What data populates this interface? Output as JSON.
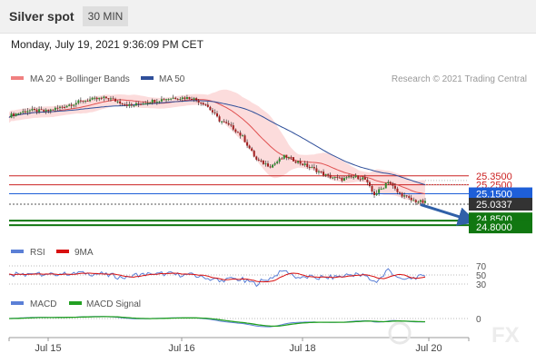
{
  "header": {
    "title": "Silver spot",
    "timeframe": "30 MIN",
    "timestamp": "Monday, July 19, 2021 9:36:09 PM CET"
  },
  "colors": {
    "ma20": "#e05050",
    "ma20_legend": "#f08080",
    "bollinger_fill": "#fbd0d0",
    "ma50": "#2f4f9a",
    "candle_up": "#2e8b2e",
    "candle_down": "#a02020",
    "level_resistance": "#cc2222",
    "level_pivot": "#1e5fd8",
    "level_support": "#117711",
    "current_price_bg": "#333333",
    "rsi": "#5b7fd6",
    "rsi_ma": "#d81010",
    "macd": "#5b7fd6",
    "macd_signal": "#22a022",
    "arrow": "#3060a8"
  },
  "chart_data": [
    {
      "type": "candlestick",
      "title": "Silver spot",
      "legend": [
        {
          "name": "MA 20 + Bollinger Bands",
          "color": "#f08080"
        },
        {
          "name": "MA 50",
          "color": "#2f4f9a"
        }
      ],
      "attribution": "Research © 2021 Trading Central",
      "x_ticks": [
        "Jul 15",
        "Jul 16",
        "Jul 18",
        "Jul 20"
      ],
      "y_range": [
        24.7,
        26.4
      ],
      "price_path": [
        [
          0,
          26.02
        ],
        [
          8,
          26.08
        ],
        [
          16,
          26.07
        ],
        [
          24,
          26.13
        ],
        [
          32,
          26.19
        ],
        [
          42,
          26.22
        ],
        [
          52,
          26.13
        ],
        [
          60,
          26.18
        ],
        [
          70,
          26.22
        ],
        [
          78,
          26.22
        ],
        [
          84,
          26.15
        ],
        [
          90,
          25.97
        ],
        [
          96,
          25.88
        ],
        [
          100,
          25.78
        ],
        [
          106,
          25.52
        ],
        [
          112,
          25.46
        ],
        [
          118,
          25.57
        ],
        [
          124,
          25.5
        ],
        [
          130,
          25.43
        ],
        [
          136,
          25.35
        ],
        [
          142,
          25.31
        ],
        [
          148,
          25.34
        ],
        [
          152,
          25.32
        ],
        [
          156,
          25.14
        ],
        [
          160,
          25.22
        ],
        [
          162,
          25.3
        ],
        [
          166,
          25.17
        ],
        [
          172,
          25.08
        ],
        [
          178,
          25.05
        ]
      ],
      "candles_x_end": 178,
      "levels": [
        {
          "label": "25.3500",
          "value": 25.35,
          "color": "#cc2222",
          "style": "solid-red-label"
        },
        {
          "label": "25.2500",
          "value": 25.25,
          "color": "#cc2222",
          "style": "solid-red-label"
        },
        {
          "label": "25.1500",
          "value": 25.15,
          "color": "#1e5fd8",
          "style": "blue-box"
        },
        {
          "label": "25.0337",
          "value": 25.0337,
          "color": "#333333",
          "style": "current-price"
        },
        {
          "label": "24.8500",
          "value": 24.85,
          "color": "#117711",
          "style": "green-box"
        },
        {
          "label": "24.8000",
          "value": 24.8,
          "color": "#117711",
          "style": "green-box"
        }
      ],
      "forecast_arrow": {
        "from": [
          176,
          25.03
        ],
        "to": [
          198,
          24.85
        ]
      }
    },
    {
      "type": "line",
      "title": "RSI",
      "series": [
        {
          "name": "RSI",
          "color": "#5b7fd6"
        },
        {
          "name": "9MA",
          "color": "#d81010"
        }
      ],
      "y_ticks": [
        "70",
        "50",
        "30"
      ],
      "y_range": [
        20,
        80
      ]
    },
    {
      "type": "line",
      "title": "MACD",
      "series": [
        {
          "name": "MACD",
          "color": "#5b7fd6"
        },
        {
          "name": "MACD Signal",
          "color": "#22a022"
        }
      ],
      "y_ticks": [
        "0"
      ]
    }
  ],
  "watermark": "FX"
}
